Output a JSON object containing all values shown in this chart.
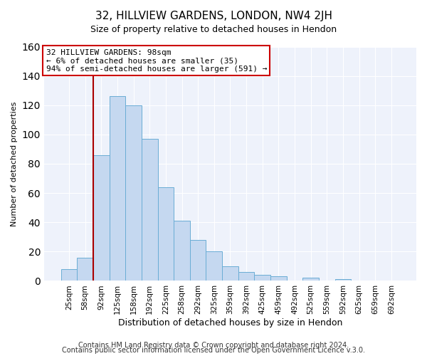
{
  "title": "32, HILLVIEW GARDENS, LONDON, NW4 2JH",
  "subtitle": "Size of property relative to detached houses in Hendon",
  "xlabel": "Distribution of detached houses by size in Hendon",
  "ylabel": "Number of detached properties",
  "bar_labels": [
    "25sqm",
    "58sqm",
    "92sqm",
    "125sqm",
    "158sqm",
    "192sqm",
    "225sqm",
    "258sqm",
    "292sqm",
    "325sqm",
    "359sqm",
    "392sqm",
    "425sqm",
    "459sqm",
    "492sqm",
    "525sqm",
    "559sqm",
    "592sqm",
    "625sqm",
    "659sqm",
    "692sqm"
  ],
  "bar_heights": [
    8,
    16,
    86,
    126,
    120,
    97,
    64,
    41,
    28,
    20,
    10,
    6,
    4,
    3,
    0,
    2,
    0,
    1,
    0,
    0,
    0
  ],
  "bar_color": "#c5d8f0",
  "bar_edge_color": "#6aadd5",
  "vline_x": 2,
  "vline_color": "#aa0000",
  "annotation_title": "32 HILLVIEW GARDENS: 98sqm",
  "annotation_line1": "← 6% of detached houses are smaller (35)",
  "annotation_line2": "94% of semi-detached houses are larger (591) →",
  "annotation_box_edge": "#cc0000",
  "ylim": [
    0,
    160
  ],
  "yticks": [
    0,
    20,
    40,
    60,
    80,
    100,
    120,
    140,
    160
  ],
  "footer1": "Contains HM Land Registry data © Crown copyright and database right 2024.",
  "footer2": "Contains public sector information licensed under the Open Government Licence v.3.0.",
  "bg_color": "#ffffff",
  "plot_bg_color": "#eef2fb",
  "grid_color": "#ffffff",
  "title_fontsize": 11,
  "subtitle_fontsize": 9,
  "ylabel_fontsize": 8,
  "xlabel_fontsize": 9,
  "tick_fontsize": 7.5,
  "footer_fontsize": 7
}
